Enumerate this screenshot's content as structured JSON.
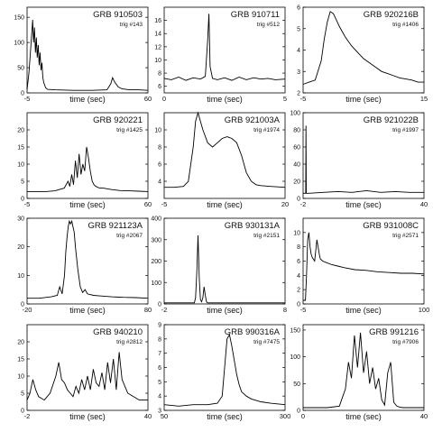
{
  "panel_rows": [
    [
      0,
      1,
      2
    ],
    [
      3,
      4,
      5
    ],
    [
      6,
      7,
      8
    ],
    [
      9,
      10,
      11
    ]
  ],
  "chart_data": [
    {
      "type": "line",
      "title": "GRB 910503",
      "subtitle": "trig #143",
      "xlabel": "time (sec)",
      "xlim": [
        -5,
        60
      ],
      "ylim": [
        0,
        170
      ],
      "x_ticks": [
        "-5",
        "60"
      ],
      "y_ticks": [
        {
          "v": 0,
          "label": "0"
        },
        {
          "v": 50,
          "label": "50"
        },
        {
          "v": 100,
          "label": "100"
        },
        {
          "v": 150,
          "label": "150"
        }
      ],
      "x": [
        -5,
        -4,
        -3,
        -2,
        -1.5,
        -1,
        -0.5,
        0,
        0.5,
        1,
        1.5,
        2,
        2.5,
        3,
        3.5,
        4,
        5,
        6,
        10,
        20,
        30,
        38,
        40,
        41,
        42,
        44,
        46,
        50,
        55,
        60
      ],
      "y": [
        6,
        40,
        90,
        145,
        100,
        130,
        80,
        110,
        70,
        95,
        55,
        80,
        45,
        60,
        30,
        20,
        10,
        7,
        6,
        5,
        5,
        6,
        18,
        30,
        22,
        12,
        8,
        6,
        6,
        5
      ]
    },
    {
      "type": "line",
      "title": "GRB 910711",
      "subtitle": "trig #512",
      "xlabel": "time (sec)",
      "xlim": [
        0,
        5
      ],
      "ylim": [
        5,
        18
      ],
      "x_ticks": [
        "0",
        "5"
      ],
      "y_ticks": [
        {
          "v": 6,
          "label": "6"
        },
        {
          "v": 8,
          "label": "8"
        },
        {
          "v": 10,
          "label": "10"
        },
        {
          "v": 12,
          "label": "12"
        },
        {
          "v": 14,
          "label": "14"
        },
        {
          "v": 16,
          "label": "16"
        }
      ],
      "x": [
        0,
        0.3,
        0.6,
        0.9,
        1.2,
        1.5,
        1.7,
        1.8,
        1.85,
        1.9,
        2.0,
        2.2,
        2.5,
        2.8,
        3.1,
        3.4,
        3.7,
        4.0,
        4.3,
        4.6,
        5
      ],
      "y": [
        7.2,
        7.0,
        7.4,
        6.9,
        7.3,
        7.1,
        7.5,
        13,
        17,
        9,
        7.2,
        7.0,
        7.3,
        6.9,
        7.4,
        7.0,
        7.3,
        7.1,
        7.2,
        7.0,
        7.1
      ]
    },
    {
      "type": "line",
      "title": "GRB 920216B",
      "subtitle": "trig #1406",
      "xlabel": "time (sec)",
      "xlim": [
        -5,
        15
      ],
      "ylim": [
        2,
        6
      ],
      "x_ticks": [
        "-5",
        "15"
      ],
      "y_ticks": [
        {
          "v": 2,
          "label": "2"
        },
        {
          "v": 3,
          "label": "3"
        },
        {
          "v": 4,
          "label": "4"
        },
        {
          "v": 5,
          "label": "5"
        },
        {
          "v": 6,
          "label": "6"
        }
      ],
      "x": [
        -5,
        -4,
        -3,
        -2,
        -1.5,
        -1,
        -0.5,
        0,
        0.5,
        1,
        2,
        3,
        4,
        5,
        6,
        7,
        8,
        9,
        10,
        11,
        12,
        13,
        14,
        15
      ],
      "y": [
        2.4,
        2.5,
        2.6,
        3.5,
        4.5,
        5.3,
        5.8,
        5.7,
        5.4,
        5.1,
        4.6,
        4.2,
        3.9,
        3.6,
        3.4,
        3.2,
        3.0,
        2.9,
        2.8,
        2.7,
        2.65,
        2.6,
        2.5,
        2.5
      ]
    },
    {
      "type": "line",
      "title": "GRB 920221",
      "subtitle": "trig #1425",
      "xlabel": "time (sec)",
      "xlim": [
        -5,
        60
      ],
      "ylim": [
        0,
        25
      ],
      "x_ticks": [
        "-5",
        "60"
      ],
      "y_ticks": [
        {
          "v": 0,
          "label": "0"
        },
        {
          "v": 5,
          "label": "5"
        },
        {
          "v": 10,
          "label": "10"
        },
        {
          "v": 15,
          "label": "15"
        },
        {
          "v": 20,
          "label": "20"
        }
      ],
      "x": [
        -5,
        0,
        5,
        10,
        15,
        17,
        18,
        19,
        20,
        21,
        22,
        23,
        24,
        25,
        26,
        27,
        28,
        29,
        30,
        31,
        32,
        34,
        36,
        40,
        45,
        50,
        55,
        60
      ],
      "y": [
        2,
        2,
        2,
        2.2,
        3,
        5,
        3.5,
        7,
        4,
        11,
        6,
        13,
        7,
        10,
        8,
        15,
        12,
        8,
        5,
        4,
        3.5,
        3,
        3,
        2.6,
        2.3,
        2.2,
        2.1,
        2
      ]
    },
    {
      "type": "line",
      "title": "GRB 921003A",
      "subtitle": "trig #1974",
      "xlabel": "time (sec)",
      "xlim": [
        -5,
        20
      ],
      "ylim": [
        2,
        12
      ],
      "x_ticks": [
        "-5",
        "20"
      ],
      "y_ticks": [
        {
          "v": 4,
          "label": "4"
        },
        {
          "v": 6,
          "label": "6"
        },
        {
          "v": 8,
          "label": "8"
        },
        {
          "v": 10,
          "label": "10"
        }
      ],
      "x": [
        -5,
        -3,
        -1,
        0,
        1,
        1.5,
        2,
        3,
        4,
        5,
        6,
        7,
        8,
        9,
        10,
        11,
        12,
        13,
        14,
        15,
        17,
        20
      ],
      "y": [
        3.3,
        3.3,
        3.4,
        4,
        8,
        11,
        12,
        10,
        8.5,
        8,
        8.5,
        9,
        9.2,
        9,
        8.5,
        7,
        5,
        4,
        3.6,
        3.5,
        3.4,
        3.3
      ]
    },
    {
      "type": "line",
      "title": "GRB 921022B",
      "subtitle": "trig #1997",
      "xlabel": "time (sec)",
      "xlim": [
        -2,
        40
      ],
      "ylim": [
        0,
        100
      ],
      "x_ticks": [
        "-2",
        "40"
      ],
      "y_ticks": [
        {
          "v": 0,
          "label": "0"
        },
        {
          "v": 20,
          "label": "20"
        },
        {
          "v": 40,
          "label": "40"
        },
        {
          "v": 60,
          "label": "60"
        },
        {
          "v": 80,
          "label": "80"
        },
        {
          "v": 100,
          "label": "100"
        }
      ],
      "x": [
        -2,
        -1.5,
        -1.1,
        -1,
        -0.9,
        -0.5,
        0,
        5,
        10,
        15,
        20,
        25,
        30,
        35,
        40
      ],
      "y": [
        6,
        6,
        6,
        85,
        6,
        6,
        6,
        7,
        8,
        7,
        9,
        7,
        8,
        7,
        7
      ]
    },
    {
      "type": "line",
      "title": "GRB 921123A",
      "subtitle": "trig #2067",
      "xlabel": "time (sec)",
      "xlim": [
        -20,
        80
      ],
      "ylim": [
        0,
        30
      ],
      "x_ticks": [
        "-20",
        "80"
      ],
      "y_ticks": [
        {
          "v": 0,
          "label": "0"
        },
        {
          "v": 10,
          "label": "10"
        },
        {
          "v": 20,
          "label": "20"
        },
        {
          "v": 30,
          "label": "30"
        }
      ],
      "x": [
        -20,
        -10,
        0,
        5,
        7,
        9,
        11,
        12,
        13,
        14,
        15,
        16,
        17,
        18,
        19,
        20,
        22,
        24,
        26,
        28,
        30,
        35,
        40,
        50,
        60,
        70,
        80
      ],
      "y": [
        2,
        2,
        2.5,
        3,
        6,
        3.5,
        10,
        18,
        23,
        27,
        29,
        28,
        29,
        27,
        25,
        20,
        12,
        6,
        4,
        5,
        3.5,
        3,
        2.8,
        2.5,
        2.3,
        2.2,
        2
      ]
    },
    {
      "type": "line",
      "title": "GRB 930131A",
      "subtitle": "trig #2151",
      "xlabel": "time (sec)",
      "xlim": [
        -2,
        8
      ],
      "ylim": [
        0,
        400
      ],
      "x_ticks": [
        "-2",
        "8"
      ],
      "y_ticks": [
        {
          "v": 0,
          "label": "0"
        },
        {
          "v": 100,
          "label": "100"
        },
        {
          "v": 200,
          "label": "200"
        },
        {
          "v": 300,
          "label": "300"
        },
        {
          "v": 400,
          "label": "400"
        }
      ],
      "x": [
        -2,
        -1,
        0,
        0.5,
        0.6,
        0.7,
        0.8,
        0.9,
        1.0,
        1.1,
        1.2,
        1.3,
        1.4,
        1.5,
        1.6,
        2,
        3,
        4,
        5,
        6,
        7,
        8
      ],
      "y": [
        5,
        5,
        5,
        5,
        30,
        150,
        320,
        120,
        20,
        10,
        30,
        80,
        40,
        10,
        5,
        5,
        5,
        5,
        5,
        5,
        5,
        5
      ]
    },
    {
      "type": "line",
      "title": "GRB 931008C",
      "subtitle": "trig #2571",
      "xlabel": "time (sec)",
      "xlim": [
        -5,
        100
      ],
      "ylim": [
        0,
        12
      ],
      "x_ticks": [
        "-5",
        "100"
      ],
      "y_ticks": [
        {
          "v": 0,
          "label": "0"
        },
        {
          "v": 2,
          "label": "2"
        },
        {
          "v": 4,
          "label": "4"
        },
        {
          "v": 6,
          "label": "6"
        },
        {
          "v": 8,
          "label": "8"
        },
        {
          "v": 10,
          "label": "10"
        }
      ],
      "x": [
        -5,
        -3,
        -2,
        -1,
        0,
        1,
        2,
        3,
        5,
        7,
        8,
        9,
        10,
        12,
        15,
        20,
        25,
        30,
        40,
        50,
        60,
        70,
        80,
        90,
        100
      ],
      "y": [
        0.5,
        0.5,
        4,
        9,
        10,
        8,
        7,
        6.5,
        6,
        9,
        8,
        7,
        6.3,
        6,
        5.8,
        5.5,
        5.3,
        5.1,
        4.8,
        4.7,
        4.5,
        4.4,
        4.3,
        4.3,
        4.2
      ]
    },
    {
      "type": "line",
      "title": "GRB 940210",
      "subtitle": "trig #2812",
      "xlabel": "time (sec)",
      "xlim": [
        -2,
        40
      ],
      "ylim": [
        0,
        25
      ],
      "x_ticks": [
        "-2",
        "40"
      ],
      "y_ticks": [
        {
          "v": 0,
          "label": "0"
        },
        {
          "v": 5,
          "label": "5"
        },
        {
          "v": 10,
          "label": "10"
        },
        {
          "v": 15,
          "label": "15"
        },
        {
          "v": 20,
          "label": "20"
        }
      ],
      "x": [
        -2,
        -1,
        0,
        1,
        2,
        4,
        6,
        8,
        9,
        10,
        11,
        12,
        13,
        14,
        15,
        16,
        17,
        18,
        19,
        20,
        21,
        22,
        23,
        24,
        25,
        26,
        27,
        28,
        29,
        30,
        31,
        32,
        33,
        35,
        37,
        40
      ],
      "y": [
        3,
        5,
        9,
        6,
        4,
        3,
        5,
        10,
        14,
        9,
        8,
        6,
        5,
        4,
        7,
        5,
        9,
        6,
        10,
        6,
        12,
        8,
        7,
        11,
        6,
        14,
        8,
        15,
        6,
        17,
        9,
        7,
        5,
        4,
        3,
        3
      ]
    },
    {
      "type": "line",
      "title": "GRB 990316A",
      "subtitle": "trig #7475",
      "xlabel": "time (sec)",
      "xlim": [
        50,
        300
      ],
      "ylim": [
        3,
        9
      ],
      "x_ticks": [
        "50",
        "300"
      ],
      "y_ticks": [
        {
          "v": 3,
          "label": "3"
        },
        {
          "v": 4,
          "label": "4"
        },
        {
          "v": 5,
          "label": "5"
        },
        {
          "v": 6,
          "label": "6"
        },
        {
          "v": 7,
          "label": "7"
        },
        {
          "v": 8,
          "label": "8"
        },
        {
          "v": 9,
          "label": "9"
        }
      ],
      "x": [
        50,
        80,
        110,
        140,
        160,
        170,
        175,
        180,
        185,
        190,
        195,
        200,
        205,
        210,
        220,
        230,
        250,
        270,
        300
      ],
      "y": [
        3.4,
        3.3,
        3.4,
        3.4,
        3.5,
        4,
        6,
        8,
        8.3,
        7.5,
        6.5,
        5.5,
        4.8,
        4.3,
        4,
        3.8,
        3.6,
        3.5,
        3.4
      ]
    },
    {
      "type": "line",
      "title": "GRB 991216",
      "subtitle": "trig #7906",
      "xlabel": "time (sec)",
      "xlim": [
        0,
        40
      ],
      "ylim": [
        0,
        160
      ],
      "x_ticks": [
        "0",
        "40"
      ],
      "y_ticks": [
        {
          "v": 0,
          "label": "0"
        },
        {
          "v": 50,
          "label": "50"
        },
        {
          "v": 100,
          "label": "100"
        },
        {
          "v": 150,
          "label": "150"
        }
      ],
      "x": [
        0,
        8,
        12,
        14,
        15,
        16,
        17,
        18,
        19,
        20,
        21,
        22,
        23,
        24,
        25,
        26,
        27,
        28,
        29,
        30,
        31,
        32,
        33,
        34,
        35,
        36,
        40
      ],
      "y": [
        5,
        5,
        8,
        40,
        90,
        60,
        140,
        80,
        145,
        70,
        110,
        50,
        80,
        40,
        60,
        20,
        10,
        70,
        90,
        15,
        8,
        6,
        5,
        5,
        5,
        5,
        5
      ]
    }
  ]
}
